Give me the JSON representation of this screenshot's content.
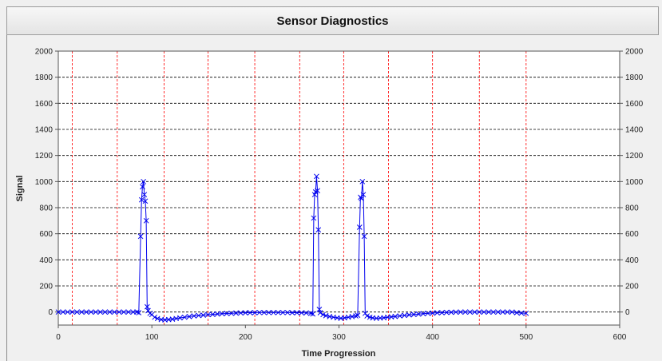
{
  "window": {
    "title": "Sensor Diagnostics"
  },
  "chart_data": {
    "type": "scatter",
    "title": "Sensor Diagnostics",
    "xlabel": "Time Progression",
    "ylabel": "Signal",
    "xlim": [
      0,
      600
    ],
    "ylim": [
      -100,
      2000
    ],
    "x_ticks": [
      0,
      100,
      200,
      300,
      400,
      500,
      600
    ],
    "y_ticks": [
      0,
      200,
      400,
      600,
      800,
      1000,
      1200,
      1400,
      1600,
      1800,
      2000
    ],
    "vertical_grid_x": [
      15,
      63,
      113,
      160,
      210,
      258,
      305,
      353,
      400,
      450,
      500
    ],
    "grid": true,
    "legend": "none",
    "series_color": "#0000ee",
    "vertical_grid_color": "#ff0000",
    "horizontal_grid_color": "#000000",
    "series": [
      {
        "points": [
          [
            0,
            0
          ],
          [
            5,
            0
          ],
          [
            10,
            0
          ],
          [
            15,
            0
          ],
          [
            20,
            0
          ],
          [
            25,
            0
          ],
          [
            30,
            0
          ],
          [
            35,
            0
          ],
          [
            40,
            0
          ],
          [
            45,
            0
          ],
          [
            50,
            0
          ],
          [
            55,
            0
          ],
          [
            60,
            0
          ],
          [
            65,
            0
          ],
          [
            70,
            0
          ],
          [
            75,
            0
          ],
          [
            80,
            0
          ],
          [
            84,
            0
          ],
          [
            86,
            -5
          ],
          [
            88,
            580
          ],
          [
            89,
            860
          ],
          [
            90,
            960
          ],
          [
            91,
            1000
          ],
          [
            92,
            900
          ],
          [
            93,
            850
          ],
          [
            94,
            700
          ],
          [
            95,
            40
          ],
          [
            96,
            10
          ],
          [
            98,
            -10
          ],
          [
            100,
            -20
          ],
          [
            103,
            -40
          ],
          [
            106,
            -50
          ],
          [
            110,
            -58
          ],
          [
            114,
            -60
          ],
          [
            118,
            -58
          ],
          [
            122,
            -55
          ],
          [
            126,
            -50
          ],
          [
            130,
            -45
          ],
          [
            135,
            -40
          ],
          [
            140,
            -35
          ],
          [
            145,
            -30
          ],
          [
            150,
            -27
          ],
          [
            155,
            -24
          ],
          [
            160,
            -20
          ],
          [
            165,
            -18
          ],
          [
            170,
            -15
          ],
          [
            175,
            -13
          ],
          [
            180,
            -11
          ],
          [
            185,
            -10
          ],
          [
            190,
            -8
          ],
          [
            195,
            -7
          ],
          [
            200,
            -6
          ],
          [
            205,
            -5
          ],
          [
            210,
            -5
          ],
          [
            215,
            -4
          ],
          [
            220,
            -4
          ],
          [
            225,
            -4
          ],
          [
            230,
            -4
          ],
          [
            235,
            -4
          ],
          [
            240,
            -4
          ],
          [
            245,
            -4
          ],
          [
            250,
            -5
          ],
          [
            255,
            -5
          ],
          [
            260,
            -6
          ],
          [
            265,
            -7
          ],
          [
            270,
            -10
          ],
          [
            272,
            -15
          ],
          [
            273,
            720
          ],
          [
            274,
            900
          ],
          [
            275,
            920
          ],
          [
            276,
            1040
          ],
          [
            277,
            930
          ],
          [
            278,
            630
          ],
          [
            279,
            20
          ],
          [
            280,
            -5
          ],
          [
            283,
            -20
          ],
          [
            286,
            -28
          ],
          [
            290,
            -35
          ],
          [
            294,
            -40
          ],
          [
            298,
            -45
          ],
          [
            302,
            -48
          ],
          [
            306,
            -45
          ],
          [
            310,
            -40
          ],
          [
            314,
            -35
          ],
          [
            318,
            -30
          ],
          [
            320,
            -25
          ],
          [
            322,
            650
          ],
          [
            323,
            880
          ],
          [
            324,
            870
          ],
          [
            325,
            1000
          ],
          [
            326,
            900
          ],
          [
            327,
            580
          ],
          [
            328,
            -10
          ],
          [
            330,
            -30
          ],
          [
            333,
            -40
          ],
          [
            336,
            -45
          ],
          [
            340,
            -48
          ],
          [
            344,
            -46
          ],
          [
            348,
            -44
          ],
          [
            352,
            -40
          ],
          [
            356,
            -37
          ],
          [
            360,
            -34
          ],
          [
            365,
            -30
          ],
          [
            370,
            -26
          ],
          [
            375,
            -22
          ],
          [
            380,
            -19
          ],
          [
            385,
            -16
          ],
          [
            390,
            -13
          ],
          [
            395,
            -10
          ],
          [
            400,
            -8
          ],
          [
            405,
            -6
          ],
          [
            410,
            -5
          ],
          [
            415,
            -3
          ],
          [
            420,
            -2
          ],
          [
            425,
            -1
          ],
          [
            430,
            0
          ],
          [
            435,
            0
          ],
          [
            440,
            0
          ],
          [
            445,
            0
          ],
          [
            450,
            0
          ],
          [
            455,
            0
          ],
          [
            460,
            0
          ],
          [
            465,
            0
          ],
          [
            470,
            0
          ],
          [
            475,
            0
          ],
          [
            480,
            0
          ],
          [
            485,
            0
          ],
          [
            490,
            -5
          ],
          [
            495,
            -8
          ],
          [
            500,
            -10
          ]
        ]
      }
    ]
  }
}
